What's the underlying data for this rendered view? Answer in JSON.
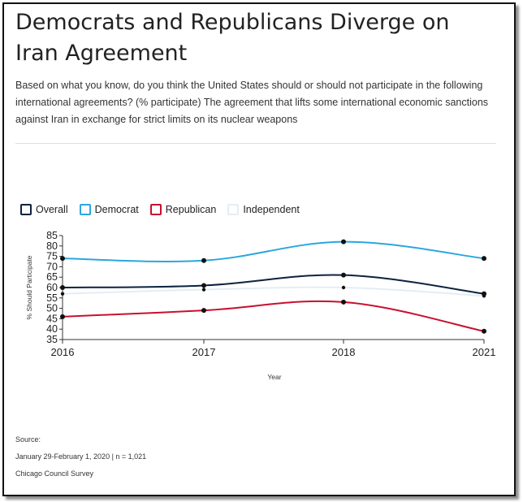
{
  "header": {
    "title": "Democrats and Republicans Diverge on Iran Agreement",
    "subtitle": "Based on what you know, do you think the United States should or should not participate in the following international agreements? (% participate) The agreement that lifts some international economic sanctions against Iran in exchange for strict limits on its nuclear weapons"
  },
  "footer": {
    "source_label": "Source:",
    "dates": "January 29-February 1, 2020 | n = 1,021",
    "org": "Chicago Council Survey"
  },
  "chart_data": {
    "type": "line",
    "x": [
      "2016",
      "2017",
      "2018",
      "2021"
    ],
    "xlabel": "Year",
    "ylabel": "% Should Participate",
    "ylim": [
      35,
      85
    ],
    "yticks": [
      35,
      40,
      45,
      50,
      55,
      60,
      65,
      70,
      75,
      80,
      85
    ],
    "legend_position": "top-left",
    "grid": false,
    "series": [
      {
        "name": "Overall",
        "color": "#0d2240",
        "values": [
          60,
          61,
          66,
          57
        ]
      },
      {
        "name": "Democrat",
        "color": "#2aa7dd",
        "values": [
          74,
          73,
          82,
          74
        ]
      },
      {
        "name": "Republican",
        "color": "#c8102e",
        "values": [
          46,
          49,
          53,
          39
        ]
      },
      {
        "name": "Independent",
        "color": "#e4edf3",
        "values": [
          57,
          59,
          60,
          56
        ]
      }
    ]
  }
}
